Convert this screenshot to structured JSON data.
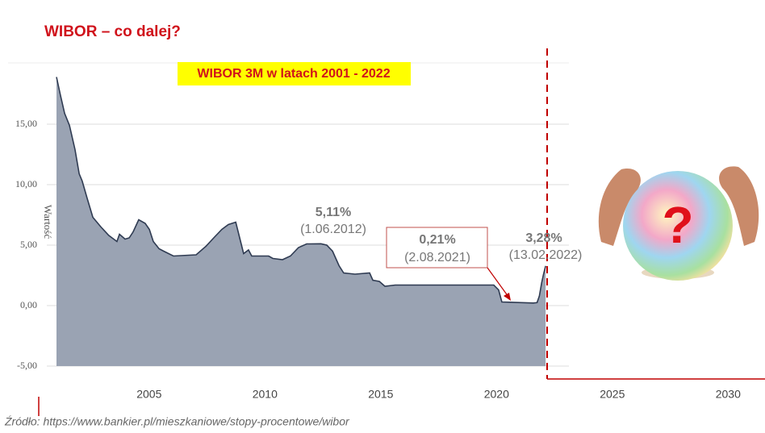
{
  "chart_data": {
    "type": "area",
    "title": "WIBOR – co dalej?",
    "subtitle": "WIBOR 3M w latach 2001 - 2022",
    "y_label": "Wartość",
    "source": "Źródło: https://www.bankier.pl/mieszkaniowe/stopy-procentowe/wibor",
    "image_text": "?",
    "color": "#9aa3b3",
    "line_color": "#2f3b52",
    "grid": true,
    "xlim": [
      2001,
      2031
    ],
    "ylim": [
      -5,
      20
    ],
    "xticks": [
      2005,
      2010,
      2015,
      2020,
      2025,
      2030
    ],
    "yticks": [
      {
        "value": 15,
        "label": "15,00"
      },
      {
        "value": 10,
        "label": "10,00"
      },
      {
        "value": 5,
        "label": "5,00"
      },
      {
        "value": 0,
        "label": "0,00"
      },
      {
        "value": -5,
        "label": "-5,00"
      }
    ],
    "x": [
      2001.0,
      2001.17,
      2001.35,
      2001.56,
      2001.8,
      2001.98,
      2002.11,
      2002.32,
      2002.57,
      2002.92,
      2003.26,
      2003.61,
      2003.72,
      2003.96,
      2004.14,
      2004.31,
      2004.55,
      2004.83,
      2005.01,
      2005.18,
      2005.43,
      2005.63,
      2006.05,
      2007.03,
      2007.45,
      2007.79,
      2008.14,
      2008.42,
      2008.74,
      2008.91,
      2009.08,
      2009.29,
      2009.43,
      2010.16,
      2010.34,
      2010.76,
      2011.1,
      2011.45,
      2011.8,
      2012.42,
      2012.67,
      2012.92,
      2013.2,
      2013.4,
      2013.89,
      2014.52,
      2014.66,
      2014.94,
      2015.18,
      2015.63,
      2019.88,
      2020.09,
      2020.23,
      2021.59,
      2021.75,
      2021.85,
      2021.95,
      2022.03,
      2022.12
    ],
    "values": [
      18.9,
      17.4,
      15.9,
      14.9,
      12.9,
      10.9,
      10.3,
      8.9,
      7.3,
      6.5,
      5.8,
      5.3,
      5.9,
      5.5,
      5.6,
      6.1,
      7.1,
      6.8,
      6.3,
      5.3,
      4.7,
      4.5,
      4.1,
      4.2,
      4.9,
      5.6,
      6.3,
      6.7,
      6.9,
      5.6,
      4.3,
      4.6,
      4.1,
      4.1,
      3.9,
      3.8,
      4.1,
      4.8,
      5.1,
      5.11,
      5.0,
      4.5,
      3.3,
      2.7,
      2.6,
      2.7,
      2.1,
      2.0,
      1.6,
      1.7,
      1.7,
      1.3,
      0.3,
      0.21,
      0.25,
      0.8,
      1.9,
      2.6,
      3.28
    ],
    "annotations": [
      {
        "label": "5,11%",
        "date": "(1.06.2012)"
      },
      {
        "label": "0,21%",
        "date": "(2.08.2021)"
      },
      {
        "label": "3,28%",
        "date": "(13.02.2022)"
      }
    ]
  }
}
